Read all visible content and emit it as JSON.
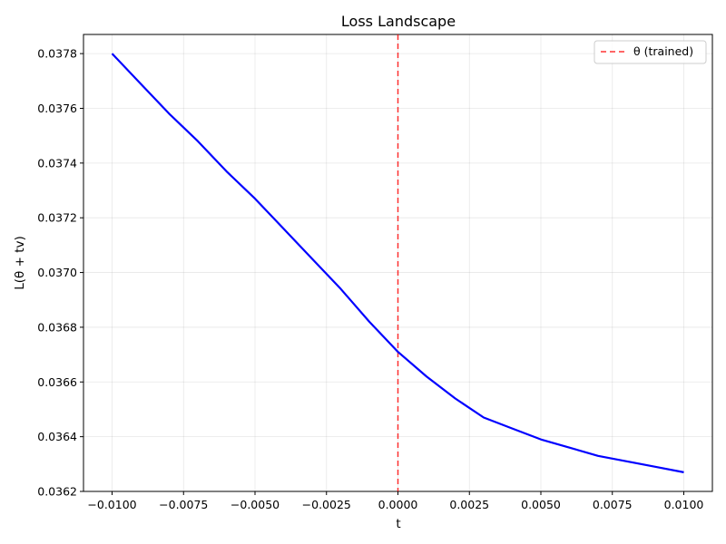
{
  "chart_data": {
    "type": "line",
    "title": "Loss Landscape",
    "xlabel": "t",
    "ylabel": "L(θ + tv)",
    "xlim": [
      -0.011,
      0.011
    ],
    "ylim": [
      0.0362,
      0.03787
    ],
    "xticks": [
      -0.01,
      -0.0075,
      -0.005,
      -0.0025,
      0,
      0.0025,
      0.005,
      0.0075,
      0.01
    ],
    "xtick_labels": [
      "−0.0100",
      "−0.0075",
      "−0.0050",
      "−0.0025",
      "0.0000",
      "0.0025",
      "0.0050",
      "0.0075",
      "0.0100"
    ],
    "yticks": [
      0.0362,
      0.0364,
      0.0366,
      0.0368,
      0.037,
      0.0372,
      0.0374,
      0.0376,
      0.0378
    ],
    "ytick_labels": [
      "0.0362",
      "0.0364",
      "0.0366",
      "0.0368",
      "0.0370",
      "0.0372",
      "0.0374",
      "0.0376",
      "0.0378"
    ],
    "grid": true,
    "legend_position": "top-right",
    "series": [
      {
        "color": "#0000ff",
        "x": [
          -0.01,
          -0.009,
          -0.008,
          -0.007,
          -0.006,
          -0.005,
          -0.004,
          -0.003,
          -0.002,
          -0.001,
          0,
          0.001,
          0.002,
          0.003,
          0.004,
          0.005,
          0.006,
          0.007,
          0.008,
          0.009,
          0.01
        ],
        "y": [
          0.0378,
          0.03769,
          0.03758,
          0.03748,
          0.03737,
          0.03727,
          0.03716,
          0.03705,
          0.03694,
          0.03682,
          0.03671,
          0.03662,
          0.03654,
          0.03647,
          0.03643,
          0.03639,
          0.03636,
          0.03633,
          0.03631,
          0.03629,
          0.03627
        ]
      }
    ],
    "reference_line": {
      "x": 0,
      "label": "θ (trained)",
      "color": "#ff0000",
      "style": "dashed"
    }
  }
}
